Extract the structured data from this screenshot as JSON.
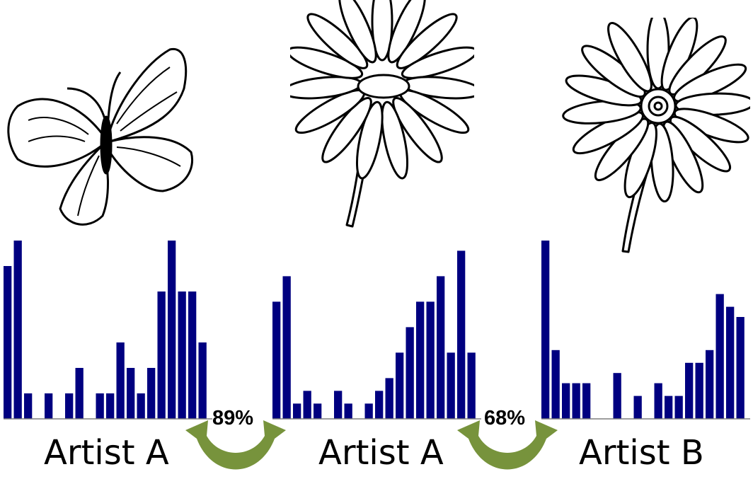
{
  "panels": [
    {
      "label": "Artist A",
      "icon": "butterfly-icon"
    },
    {
      "label": "Artist A",
      "icon": "daisy-flower-icon"
    },
    {
      "label": "Artist B",
      "icon": "gerbera-flower-icon"
    }
  ],
  "comparisons": [
    {
      "similarity": "89%",
      "between": [
        "panel-1",
        "panel-2"
      ]
    },
    {
      "similarity": "68%",
      "between": [
        "panel-2",
        "panel-3"
      ]
    }
  ],
  "colors": {
    "bar": "#000080",
    "arrow": "#77933c",
    "axis": "#7f7f7f"
  },
  "chart_data": [
    {
      "type": "bar",
      "title": "",
      "ylim": [
        0,
        7
      ],
      "values": [
        6,
        7,
        1,
        0,
        1,
        0,
        1,
        2,
        0,
        1,
        1,
        3,
        2,
        1,
        2,
        5,
        7,
        5,
        5,
        3
      ]
    },
    {
      "type": "bar",
      "title": "",
      "ylim": [
        0,
        7
      ],
      "values": [
        4.6,
        5.6,
        0.6,
        1.1,
        0.6,
        0,
        1.1,
        0.6,
        0,
        0.6,
        1.1,
        1.6,
        2.6,
        3.6,
        4.6,
        4.6,
        5.6,
        2.6,
        6.6,
        2.6
      ]
    },
    {
      "type": "bar",
      "title": "",
      "ylim": [
        0,
        7
      ],
      "values": [
        7,
        2.7,
        1.4,
        1.4,
        1.4,
        0,
        0,
        1.8,
        0,
        0.9,
        0,
        1.4,
        0.9,
        0.9,
        2.2,
        2.2,
        2.7,
        4.9,
        4.4,
        4.0
      ]
    }
  ]
}
